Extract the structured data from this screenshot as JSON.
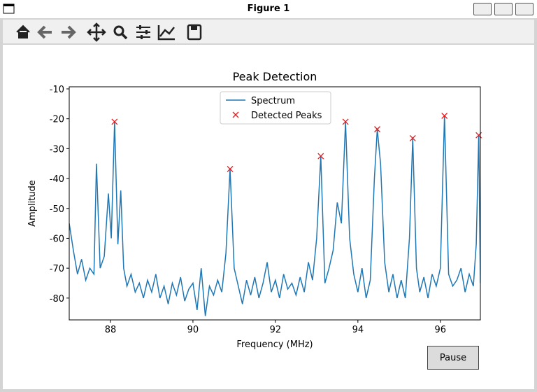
{
  "window": {
    "title": "Figure 1"
  },
  "chart_data": {
    "type": "line",
    "title": "Peak Detection",
    "x_label": "Frequency (MHz)",
    "y_label": "Amplitude",
    "xlim": [
      87.0,
      96.97
    ],
    "ylim": [
      -87.3,
      -9.3
    ],
    "xticks": [
      88,
      90,
      92,
      94,
      96
    ],
    "yticks": [
      -10,
      -20,
      -30,
      -40,
      -50,
      -60,
      -70,
      -80
    ],
    "legend": "upper center",
    "series": [
      {
        "name": "Spectrum",
        "color": "#1f77b4",
        "style": "line",
        "x": [
          87.0,
          87.1,
          87.2,
          87.3,
          87.4,
          87.5,
          87.6,
          87.66,
          87.75,
          87.85,
          87.95,
          88.02,
          88.1,
          88.18,
          88.25,
          88.32,
          88.4,
          88.5,
          88.6,
          88.7,
          88.8,
          88.9,
          89.0,
          89.1,
          89.2,
          89.3,
          89.4,
          89.5,
          89.6,
          89.7,
          89.8,
          89.9,
          90.0,
          90.1,
          90.2,
          90.3,
          90.4,
          90.5,
          90.6,
          90.7,
          90.8,
          90.9,
          91.0,
          91.1,
          91.2,
          91.3,
          91.4,
          91.5,
          91.6,
          91.7,
          91.8,
          91.9,
          92.0,
          92.1,
          92.2,
          92.3,
          92.4,
          92.5,
          92.6,
          92.7,
          92.8,
          92.9,
          93.0,
          93.1,
          93.2,
          93.3,
          93.4,
          93.5,
          93.6,
          93.7,
          93.8,
          93.9,
          94.0,
          94.1,
          94.2,
          94.3,
          94.4,
          94.47,
          94.55,
          94.65,
          94.75,
          94.85,
          94.95,
          95.05,
          95.15,
          95.25,
          95.33,
          95.42,
          95.5,
          95.6,
          95.7,
          95.8,
          95.9,
          96.0,
          96.1,
          96.2,
          96.3,
          96.4,
          96.5,
          96.6,
          96.7,
          96.8,
          96.87,
          96.93,
          96.97
        ],
        "values": [
          -55,
          -64,
          -72,
          -67,
          -74,
          -70,
          -72,
          -35,
          -70,
          -66,
          -45,
          -60,
          -21,
          -62,
          -44,
          -70,
          -76,
          -72,
          -78,
          -75,
          -80,
          -74,
          -78,
          -72,
          -80,
          -76,
          -82,
          -75,
          -79,
          -73,
          -81,
          -77,
          -75,
          -84,
          -70,
          -86,
          -76,
          -79,
          -74,
          -78,
          -65,
          -36.8,
          -70,
          -76,
          -82,
          -74,
          -79,
          -73,
          -80,
          -75,
          -68,
          -78,
          -74,
          -80,
          -72,
          -77,
          -75,
          -79,
          -73,
          -78,
          -68,
          -74,
          -60,
          -32.5,
          -75,
          -70,
          -64,
          -48,
          -55,
          -21,
          -60,
          -72,
          -78,
          -70,
          -80,
          -74,
          -40,
          -23.5,
          -35,
          -68,
          -78,
          -72,
          -80,
          -74,
          -80,
          -60,
          -26.5,
          -70,
          -78,
          -73,
          -80,
          -72,
          -76,
          -70,
          -19,
          -72,
          -76,
          -74,
          -70,
          -78,
          -72,
          -76,
          -62,
          -25.5,
          -75
        ]
      },
      {
        "name": "Detected Peaks",
        "color": "#e41a1c",
        "style": "x",
        "x": [
          88.1,
          90.9,
          93.1,
          93.7,
          94.47,
          95.33,
          96.1,
          96.93
        ],
        "values": [
          -21,
          -36.8,
          -32.5,
          -21,
          -23.5,
          -26.5,
          -19,
          -25.5
        ]
      }
    ]
  },
  "controls": {
    "pause_button": "Pause"
  }
}
